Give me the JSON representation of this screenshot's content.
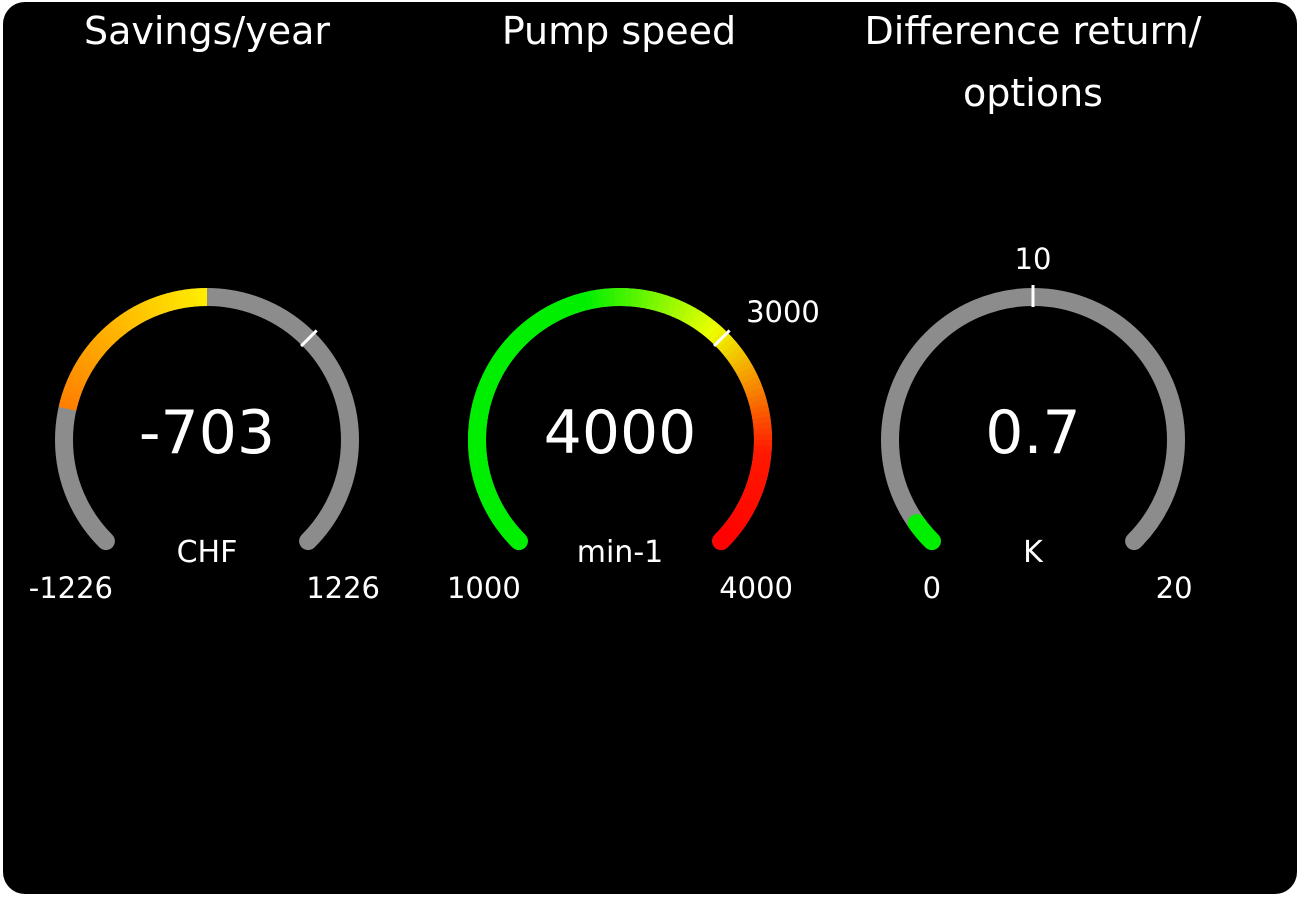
{
  "gauges": [
    {
      "title": "Savings/year",
      "value": -703,
      "value_text": "-703",
      "unit": "CHF",
      "min": -1226,
      "max": 1226,
      "min_text": "-1226",
      "max_text": "1226",
      "fill_from": 0,
      "marker": 409,
      "marker_text": "",
      "colors": [
        [
          0,
          "#ff2a00"
        ],
        [
          0.25,
          "#ff8c00"
        ],
        [
          0.5,
          "#ffee00"
        ]
      ]
    },
    {
      "title": "Pump speed",
      "value": 4000,
      "value_text": "4000",
      "unit": "min-1",
      "min": 1000,
      "max": 4000,
      "min_text": "1000",
      "max_text": "4000",
      "fill_from": 1000,
      "marker": 3000,
      "marker_text": "3000",
      "colors": [
        [
          0,
          "#00ee00"
        ],
        [
          0.45,
          "#00ee00"
        ],
        [
          0.65,
          "#eeff00"
        ],
        [
          0.85,
          "#ff1a00"
        ],
        [
          1,
          "#ff0000"
        ]
      ]
    },
    {
      "title": "Difference return/ options",
      "value": 0.7,
      "value_text": "0.7",
      "unit": "K",
      "min": 0,
      "max": 20,
      "min_text": "0",
      "max_text": "20",
      "fill_from": 0,
      "marker": 10,
      "marker_text": "10",
      "colors": [
        [
          0,
          "#00ee00"
        ],
        [
          1,
          "#00ee00"
        ]
      ]
    }
  ],
  "track_color": "#8c8c8c",
  "background": "#000000"
}
